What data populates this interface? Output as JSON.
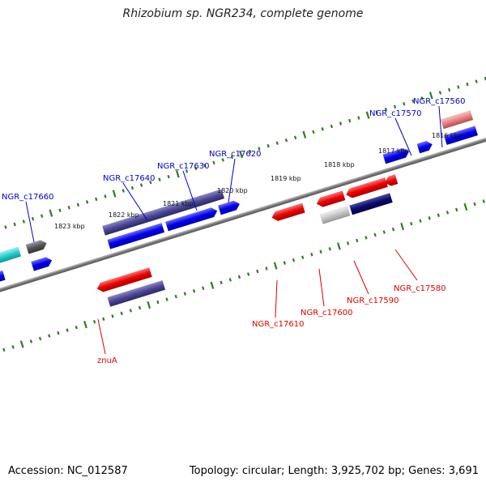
{
  "title": "Rhizobium sp. NGR234, complete genome",
  "footer": {
    "accession": "Accession: NC_012587",
    "topology": "Topology: circular; Length: 3,925,702 bp; Genes: 3,691"
  },
  "colors": {
    "backbone": "#8a8a8a",
    "tick": "#2e7d1e",
    "label_top": "#0000cc",
    "label_bottom": "#dd0000"
  },
  "coordinate_labels": [
    {
      "kbp": 1816,
      "text": "1816 kbp"
    },
    {
      "kbp": 1817,
      "text": "1817 kbp"
    },
    {
      "kbp": 1818,
      "text": "1818 kbp"
    },
    {
      "kbp": 1819,
      "text": "1819 kbp"
    },
    {
      "kbp": 1820,
      "text": "1820 kbp"
    },
    {
      "kbp": 1821,
      "text": "1821 kbp"
    },
    {
      "kbp": 1822,
      "text": "1822 kbp"
    },
    {
      "kbp": 1823,
      "text": "1823 kbp"
    }
  ],
  "gene_labels": [
    {
      "id": "NGR_c17560",
      "text": "NGR_c17560",
      "strand": "top"
    },
    {
      "id": "NGR_c17570",
      "text": "NGR_c17570",
      "strand": "top"
    },
    {
      "id": "NGR_c17620",
      "text": "NGR_c17620",
      "strand": "top"
    },
    {
      "id": "NGR_c17630",
      "text": "NGR_c17630",
      "strand": "top"
    },
    {
      "id": "NGR_c17640",
      "text": "NGR_c17640",
      "strand": "top"
    },
    {
      "id": "NGR_c17660",
      "text": "NGR_c17660",
      "strand": "top"
    },
    {
      "id": "NGR_c17580",
      "text": "NGR_c17580",
      "strand": "bottom"
    },
    {
      "id": "NGR_c17590",
      "text": "NGR_c17590",
      "strand": "bottom"
    },
    {
      "id": "NGR_c17600",
      "text": "NGR_c17600",
      "strand": "bottom"
    },
    {
      "id": "NGR_c17610",
      "text": "NGR_c17610",
      "strand": "bottom"
    },
    {
      "id": "znuA",
      "text": "znuA",
      "strand": "bottom"
    }
  ]
}
